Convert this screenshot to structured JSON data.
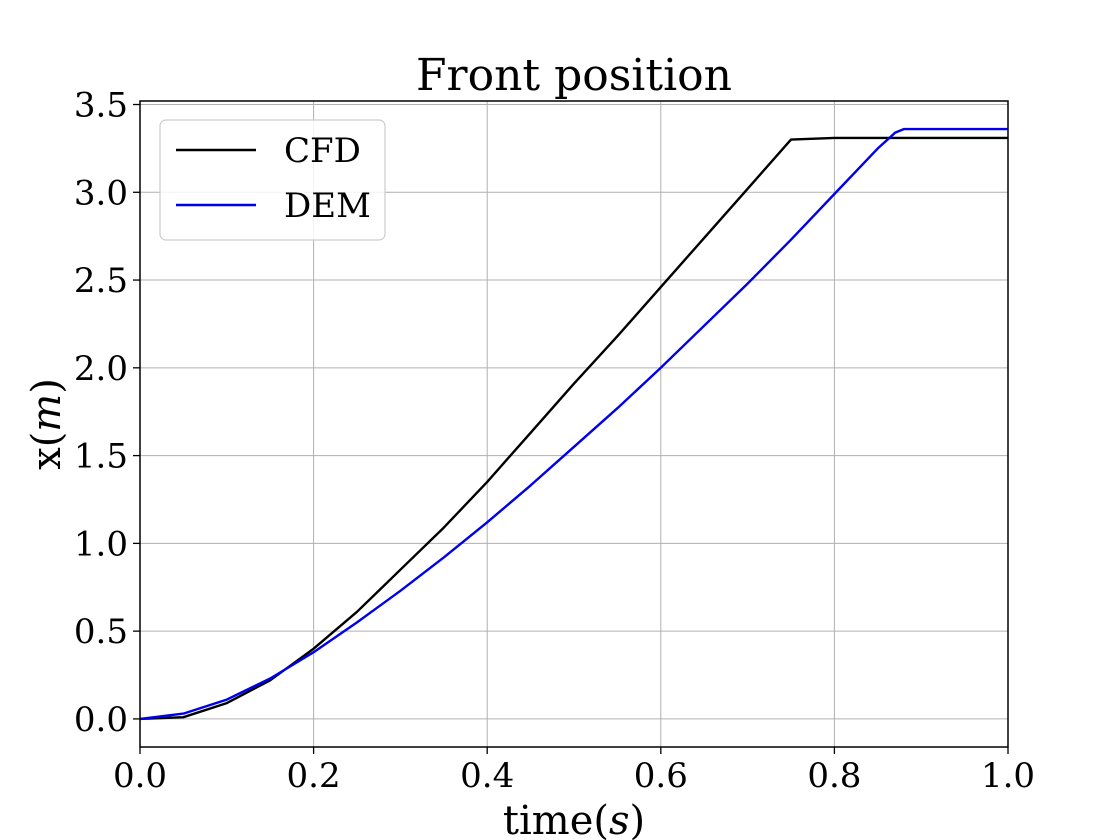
{
  "chart_data": {
    "type": "line",
    "title": "Front position",
    "xlabel": "time(s)",
    "xlabel_parts": [
      "time(",
      "s",
      ")"
    ],
    "ylabel": "x(m)",
    "ylabel_parts": [
      "x(",
      "m",
      ")"
    ],
    "xlim": [
      0.0,
      1.0
    ],
    "ylim": [
      -0.16,
      3.52
    ],
    "xticks": [
      0.0,
      0.2,
      0.4,
      0.6,
      0.8,
      1.0
    ],
    "xtick_labels": [
      "0.0",
      "0.2",
      "0.4",
      "0.6",
      "0.8",
      "1.0"
    ],
    "yticks": [
      0.0,
      0.5,
      1.0,
      1.5,
      2.0,
      2.5,
      3.0,
      3.5
    ],
    "ytick_labels": [
      "0.0",
      "0.5",
      "1.0",
      "1.5",
      "2.0",
      "2.5",
      "3.0",
      "3.5"
    ],
    "grid": true,
    "legend_position": "top-left",
    "series": [
      {
        "name": "CFD",
        "color": "#000000",
        "x": [
          0.0,
          0.05,
          0.1,
          0.15,
          0.2,
          0.25,
          0.3,
          0.35,
          0.4,
          0.45,
          0.5,
          0.55,
          0.6,
          0.65,
          0.7,
          0.75,
          0.8,
          0.85,
          0.9,
          0.95,
          1.0
        ],
        "y": [
          0.0,
          0.01,
          0.09,
          0.22,
          0.4,
          0.61,
          0.85,
          1.09,
          1.35,
          1.63,
          1.91,
          2.18,
          2.46,
          2.74,
          3.02,
          3.3,
          3.31,
          3.31,
          3.31,
          3.31,
          3.31
        ]
      },
      {
        "name": "DEM",
        "color": "#0000ee",
        "x": [
          0.0,
          0.05,
          0.1,
          0.15,
          0.2,
          0.25,
          0.3,
          0.35,
          0.4,
          0.45,
          0.5,
          0.55,
          0.6,
          0.65,
          0.7,
          0.75,
          0.8,
          0.85,
          0.87,
          0.88,
          0.9,
          0.95,
          1.0
        ],
        "y": [
          0.0,
          0.03,
          0.11,
          0.23,
          0.38,
          0.55,
          0.73,
          0.92,
          1.12,
          1.33,
          1.55,
          1.77,
          2.0,
          2.24,
          2.48,
          2.73,
          2.99,
          3.25,
          3.34,
          3.36,
          3.36,
          3.36,
          3.36
        ]
      }
    ]
  }
}
